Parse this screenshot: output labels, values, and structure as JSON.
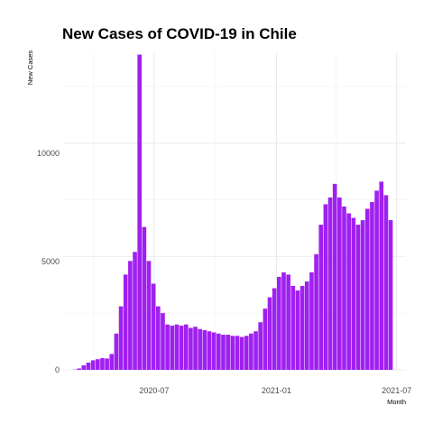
{
  "chart_data": {
    "type": "bar",
    "title": "New Cases of COVID-19 in Chile",
    "xlabel": "Month",
    "ylabel": "New Cases",
    "x_ticks": [
      "2020-07",
      "2021-01",
      "2021-07"
    ],
    "y_ticks": [
      0,
      5000,
      10000
    ],
    "xlim": [
      "2020-02-15",
      "2021-07-15"
    ],
    "ylim": [
      0,
      14000
    ],
    "grid": true,
    "legend": "none",
    "bar_color": "#A020F0",
    "dates": [
      "2020-03-03",
      "2020-03-10",
      "2020-03-17",
      "2020-03-24",
      "2020-03-31",
      "2020-04-07",
      "2020-04-14",
      "2020-04-21",
      "2020-04-28",
      "2020-05-05",
      "2020-05-12",
      "2020-05-19",
      "2020-05-26",
      "2020-06-02",
      "2020-06-09",
      "2020-06-16",
      "2020-06-23",
      "2020-06-30",
      "2020-07-07",
      "2020-07-14",
      "2020-07-21",
      "2020-07-28",
      "2020-08-04",
      "2020-08-11",
      "2020-08-18",
      "2020-08-25",
      "2020-09-01",
      "2020-09-08",
      "2020-09-15",
      "2020-09-22",
      "2020-09-29",
      "2020-10-06",
      "2020-10-13",
      "2020-10-20",
      "2020-10-27",
      "2020-11-03",
      "2020-11-10",
      "2020-11-17",
      "2020-11-24",
      "2020-12-01",
      "2020-12-08",
      "2020-12-15",
      "2020-12-22",
      "2020-12-29",
      "2021-01-05",
      "2021-01-12",
      "2021-01-19",
      "2021-01-26",
      "2021-02-02",
      "2021-02-09",
      "2021-02-16",
      "2021-02-23",
      "2021-03-02",
      "2021-03-09",
      "2021-03-16",
      "2021-03-23",
      "2021-03-30",
      "2021-04-06",
      "2021-04-13",
      "2021-04-20",
      "2021-04-27",
      "2021-05-04",
      "2021-05-11",
      "2021-05-18",
      "2021-05-25",
      "2021-06-01",
      "2021-06-08",
      "2021-06-15",
      "2021-06-22"
    ],
    "values": [
      10,
      60,
      200,
      320,
      420,
      470,
      520,
      500,
      700,
      1600,
      2800,
      4200,
      4800,
      5200,
      13900,
      6300,
      4800,
      3800,
      2800,
      2500,
      2000,
      1950,
      2000,
      1950,
      2000,
      1850,
      1900,
      1800,
      1750,
      1700,
      1650,
      1600,
      1550,
      1550,
      1500,
      1500,
      1450,
      1500,
      1600,
      1700,
      2100,
      2700,
      3200,
      3600,
      4100,
      4300,
      4200,
      3700,
      3500,
      3700,
      3900,
      4300,
      5100,
      6400,
      7300,
      7600,
      8200,
      7600,
      7200,
      6900,
      6700,
      6400,
      6600,
      7100,
      7400,
      7900,
      8300,
      7700,
      6600
    ]
  }
}
